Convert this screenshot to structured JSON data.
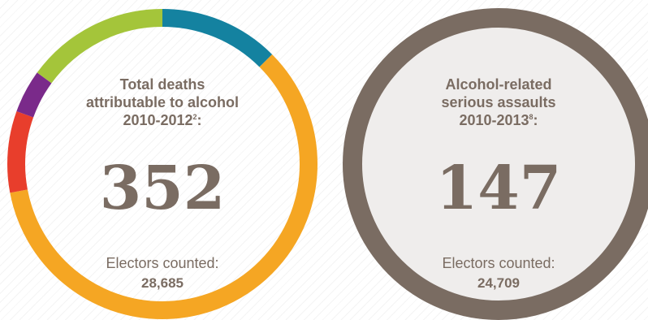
{
  "chart_data": [
    {
      "type": "pie",
      "title_lines": [
        "Total deaths",
        "attributable to alcohol"
      ],
      "title_year": "2010-2012",
      "title_note": "2",
      "title_suffix": ":",
      "value": "352",
      "footer_label": "Electors counted:",
      "footer_value": "28,685",
      "segments": [
        {
          "color": "#1482a0",
          "share": 0.125
        },
        {
          "color": "#f5a623",
          "share": 0.595
        },
        {
          "color": "#e83e2c",
          "share": 0.085
        },
        {
          "color": "#7a2a8a",
          "share": 0.045
        },
        {
          "color": "#a4c53a",
          "share": 0.15
        }
      ]
    },
    {
      "type": "pie",
      "title_lines": [
        "Alcohol-related",
        "serious assaults"
      ],
      "title_year": "2010-2013",
      "title_note": "8",
      "title_suffix": ":",
      "value": "147",
      "footer_label": "Electors counted:",
      "footer_value": "24,709",
      "segments": [
        {
          "color": "#7a6c62",
          "share": 1
        }
      ],
      "fill": "#efedec"
    }
  ]
}
